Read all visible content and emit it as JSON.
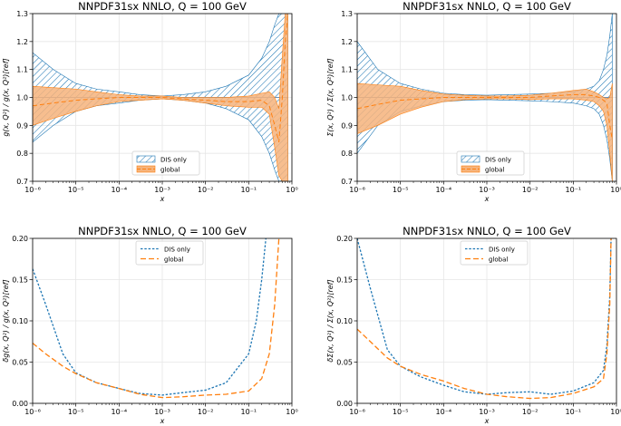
{
  "colors": {
    "dis": "#1f77b4",
    "global": "#ff7f0e",
    "global_fill": "#f6b37b",
    "grid": "#e6e6e6",
    "refline": "#6a8fb5"
  },
  "chart_data": [
    {
      "type": "area",
      "title": "NNPDF31sx NNLO, Q = 100 GeV",
      "xlabel": "x",
      "ylabel": "g(x, Q²) / g(x, Q²)[ref]",
      "x_scale": "log",
      "xlim": [
        1e-06,
        1
      ],
      "ylim": [
        0.7,
        1.3
      ],
      "x_ticks": [
        "10⁻⁶",
        "10⁻⁵",
        "10⁻⁴",
        "10⁻³",
        "10⁻²",
        "10⁻¹",
        "10⁰"
      ],
      "y_ticks": [
        "0.7",
        "0.8",
        "0.9",
        "1.0",
        "1.1",
        "1.2",
        "1.3"
      ],
      "grid": true,
      "legend": {
        "placement": "lower-center",
        "entries": [
          "DIS only",
          "global"
        ]
      },
      "series": [
        {
          "name": "DIS only",
          "style": "hatched band",
          "x": [
            1e-06,
            3e-06,
            1e-05,
            3e-05,
            0.0001,
            0.0003,
            0.001,
            0.003,
            0.01,
            0.03,
            0.1,
            0.2,
            0.3,
            0.4,
            0.5,
            0.6,
            0.7,
            0.8
          ],
          "central": [
            1.0,
            1.0,
            1.0,
            1.0,
            1.0,
            1.0,
            1.0,
            1.0,
            1.0,
            1.0,
            1.0,
            1.0,
            1.0,
            1.0,
            1.0,
            1.0,
            1.0,
            1.0
          ],
          "upper": [
            1.16,
            1.1,
            1.05,
            1.03,
            1.02,
            1.01,
            1.005,
            1.01,
            1.02,
            1.04,
            1.08,
            1.14,
            1.2,
            1.26,
            1.3,
            1.3,
            1.3,
            1.3
          ],
          "lower": [
            0.84,
            0.9,
            0.95,
            0.97,
            0.98,
            0.99,
            0.995,
            0.99,
            0.98,
            0.96,
            0.92,
            0.86,
            0.8,
            0.74,
            0.7,
            0.7,
            0.7,
            0.7
          ]
        },
        {
          "name": "global",
          "style": "solid band",
          "x": [
            1e-06,
            3e-06,
            1e-05,
            3e-05,
            0.0001,
            0.0003,
            0.001,
            0.003,
            0.01,
            0.03,
            0.1,
            0.2,
            0.3,
            0.4,
            0.5,
            0.6,
            0.7,
            0.8
          ],
          "central": [
            0.97,
            0.98,
            0.99,
            0.995,
            1.0,
            1.0,
            1.0,
            0.995,
            0.99,
            0.985,
            0.985,
            0.99,
            0.97,
            0.9,
            0.84,
            1.0,
            1.2,
            1.3
          ],
          "upper": [
            1.04,
            1.035,
            1.03,
            1.02,
            1.01,
            1.005,
            1.005,
            1.0,
            1.0,
            1.0,
            1.005,
            1.015,
            1.02,
            1.0,
            0.96,
            1.15,
            1.3,
            1.3
          ],
          "lower": [
            0.9,
            0.925,
            0.95,
            0.97,
            0.985,
            0.99,
            0.995,
            0.99,
            0.98,
            0.97,
            0.965,
            0.965,
            0.94,
            0.82,
            0.72,
            0.7,
            0.7,
            0.7
          ]
        }
      ]
    },
    {
      "type": "area",
      "title": "NNPDF31sx NNLO, Q = 100 GeV",
      "xlabel": "x",
      "ylabel": "Σ(x, Q²) / Σ(x, Q²)[ref]",
      "x_scale": "log",
      "xlim": [
        1e-06,
        1
      ],
      "ylim": [
        0.7,
        1.3
      ],
      "x_ticks": [
        "10⁻⁶",
        "10⁻⁵",
        "10⁻⁴",
        "10⁻³",
        "10⁻²",
        "10⁻¹",
        "10⁰"
      ],
      "y_ticks": [
        "0.7",
        "0.8",
        "0.9",
        "1.0",
        "1.1",
        "1.2",
        "1.3"
      ],
      "grid": true,
      "legend": {
        "placement": "lower-center",
        "entries": [
          "DIS only",
          "global"
        ]
      },
      "series": [
        {
          "name": "DIS only",
          "style": "hatched band",
          "x": [
            1e-06,
            3e-06,
            1e-05,
            3e-05,
            0.0001,
            0.0003,
            0.001,
            0.003,
            0.01,
            0.03,
            0.1,
            0.2,
            0.3,
            0.4,
            0.5,
            0.6,
            0.7,
            0.8
          ],
          "central": [
            1.0,
            1.0,
            1.0,
            1.0,
            1.0,
            1.0,
            1.0,
            1.0,
            1.0,
            1.0,
            1.0,
            1.0,
            1.0,
            1.0,
            1.0,
            1.0,
            1.0,
            1.0
          ],
          "upper": [
            1.2,
            1.1,
            1.05,
            1.03,
            1.015,
            1.01,
            1.008,
            1.01,
            1.012,
            1.015,
            1.02,
            1.03,
            1.04,
            1.06,
            1.1,
            1.15,
            1.22,
            1.3
          ],
          "lower": [
            0.8,
            0.9,
            0.95,
            0.97,
            0.985,
            0.99,
            0.992,
            0.99,
            0.988,
            0.985,
            0.98,
            0.97,
            0.96,
            0.94,
            0.9,
            0.85,
            0.78,
            0.7
          ]
        },
        {
          "name": "global",
          "style": "solid band",
          "x": [
            1e-06,
            3e-06,
            1e-05,
            3e-05,
            0.0001,
            0.0003,
            0.001,
            0.003,
            0.01,
            0.03,
            0.1,
            0.2,
            0.3,
            0.4,
            0.5,
            0.6,
            0.7,
            0.8
          ],
          "central": [
            0.96,
            0.975,
            0.99,
            0.995,
            1.0,
            1.0,
            1.0,
            1.0,
            1.0,
            1.005,
            1.01,
            1.01,
            1.005,
            1.0,
            0.99,
            0.98,
            0.9,
            0.85
          ],
          "upper": [
            1.05,
            1.045,
            1.04,
            1.025,
            1.012,
            1.008,
            1.005,
            1.005,
            1.008,
            1.015,
            1.025,
            1.03,
            1.02,
            1.01,
            1.0,
            0.995,
            1.0,
            1.05
          ],
          "lower": [
            0.87,
            0.9,
            0.94,
            0.965,
            0.985,
            0.992,
            0.995,
            0.995,
            0.992,
            0.995,
            0.995,
            0.99,
            0.985,
            0.97,
            0.95,
            0.9,
            0.8,
            0.7
          ]
        }
      ]
    },
    {
      "type": "line",
      "title": "NNPDF31sx NNLO, Q = 100 GeV",
      "xlabel": "x",
      "ylabel": "δg(x, Q²) / g(x, Q²)[ref]",
      "x_scale": "log",
      "xlim": [
        1e-06,
        1
      ],
      "ylim": [
        0,
        0.2
      ],
      "x_ticks": [
        "10⁻⁶",
        "10⁻⁵",
        "10⁻⁴",
        "10⁻³",
        "10⁻²",
        "10⁻¹",
        "10⁰"
      ],
      "y_ticks": [
        "0.00",
        "0.05",
        "0.10",
        "0.15",
        "0.20"
      ],
      "grid": true,
      "legend": {
        "placement": "top-center",
        "entries": [
          "DIS only",
          "global"
        ]
      },
      "series": [
        {
          "name": "DIS only",
          "style": "dotted",
          "x": [
            1e-06,
            2e-06,
            5e-06,
            1e-05,
            3e-05,
            0.0001,
            0.0003,
            0.001,
            0.003,
            0.01,
            0.03,
            0.1,
            0.15,
            0.2,
            0.25
          ],
          "values": [
            0.163,
            0.12,
            0.06,
            0.037,
            0.025,
            0.018,
            0.012,
            0.01,
            0.013,
            0.016,
            0.025,
            0.06,
            0.1,
            0.15,
            0.2
          ]
        },
        {
          "name": "global",
          "style": "dashed",
          "x": [
            1e-06,
            2e-06,
            5e-06,
            1e-05,
            3e-05,
            0.0001,
            0.0003,
            0.001,
            0.003,
            0.01,
            0.03,
            0.1,
            0.2,
            0.3,
            0.4,
            0.5
          ],
          "values": [
            0.073,
            0.06,
            0.045,
            0.036,
            0.025,
            0.018,
            0.011,
            0.007,
            0.008,
            0.01,
            0.011,
            0.015,
            0.03,
            0.06,
            0.12,
            0.2
          ]
        }
      ]
    },
    {
      "type": "line",
      "title": "NNPDF31sx NNLO, Q = 100 GeV",
      "xlabel": "x",
      "ylabel": "δΣ(x, Q²) / Σ(x, Q²)[ref]",
      "x_scale": "log",
      "xlim": [
        1e-06,
        1
      ],
      "ylim": [
        0,
        0.2
      ],
      "x_ticks": [
        "10⁻⁶",
        "10⁻⁵",
        "10⁻⁴",
        "10⁻³",
        "10⁻²",
        "10⁻¹",
        "10⁰"
      ],
      "y_ticks": [
        "0.00",
        "0.05",
        "0.10",
        "0.15",
        "0.20"
      ],
      "grid": true,
      "legend": {
        "placement": "top-center",
        "entries": [
          "DIS only",
          "global"
        ]
      },
      "series": [
        {
          "name": "DIS only",
          "style": "dotted",
          "x": [
            1e-06,
            2e-06,
            5e-06,
            1e-05,
            3e-05,
            0.0001,
            0.0003,
            0.001,
            0.003,
            0.01,
            0.03,
            0.1,
            0.3,
            0.5,
            0.6,
            0.7,
            0.75
          ],
          "values": [
            0.2,
            0.14,
            0.065,
            0.045,
            0.032,
            0.022,
            0.014,
            0.011,
            0.013,
            0.014,
            0.011,
            0.015,
            0.025,
            0.04,
            0.07,
            0.13,
            0.2
          ]
        },
        {
          "name": "global",
          "style": "dashed",
          "x": [
            1e-06,
            2e-06,
            5e-06,
            1e-05,
            3e-05,
            0.0001,
            0.0003,
            0.001,
            0.003,
            0.01,
            0.03,
            0.1,
            0.3,
            0.5,
            0.6,
            0.7,
            0.75
          ],
          "values": [
            0.09,
            0.075,
            0.055,
            0.045,
            0.035,
            0.027,
            0.018,
            0.011,
            0.008,
            0.006,
            0.007,
            0.012,
            0.02,
            0.03,
            0.06,
            0.12,
            0.2
          ]
        }
      ]
    }
  ]
}
